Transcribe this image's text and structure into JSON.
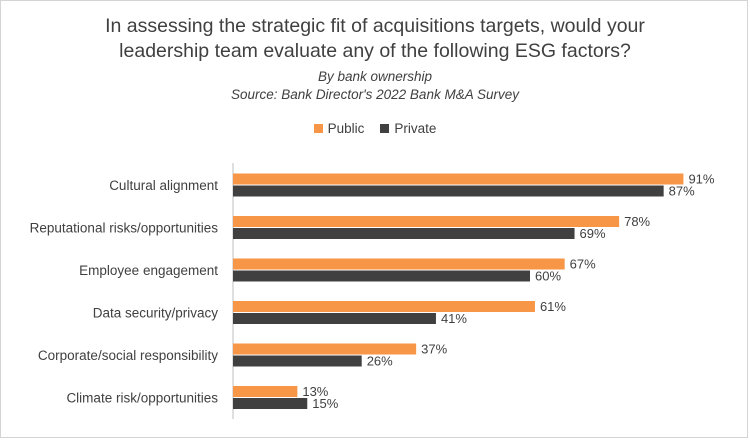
{
  "chart_data": {
    "type": "bar",
    "orientation": "horizontal",
    "title": [
      "In assessing the strategic fit of acquisitions targets, would your",
      "leadership team evaluate any of the following ESG factors?"
    ],
    "subtitle": [
      "By bank ownership",
      "Source: Bank Director's 2022 Bank M&A Survey"
    ],
    "categories": [
      "Cultural alignment",
      "Reputational risks/opportunities",
      "Employee engagement",
      "Data security/privacy",
      "Corporate/social responsibility",
      "Climate risk/opportunities"
    ],
    "series": [
      {
        "name": "Public",
        "color": "#f79646",
        "values": [
          91,
          78,
          67,
          61,
          37,
          13
        ],
        "labels": [
          "91%",
          "78%",
          "67%",
          "61%",
          "37%",
          "13%"
        ]
      },
      {
        "name": "Private",
        "color": "#404040",
        "values": [
          87,
          69,
          60,
          41,
          26,
          15
        ],
        "labels": [
          "87%",
          "69%",
          "60%",
          "41%",
          "26%",
          "15%"
        ]
      }
    ],
    "xlim": [
      0,
      100
    ],
    "legend_position": "top",
    "grid": false
  }
}
